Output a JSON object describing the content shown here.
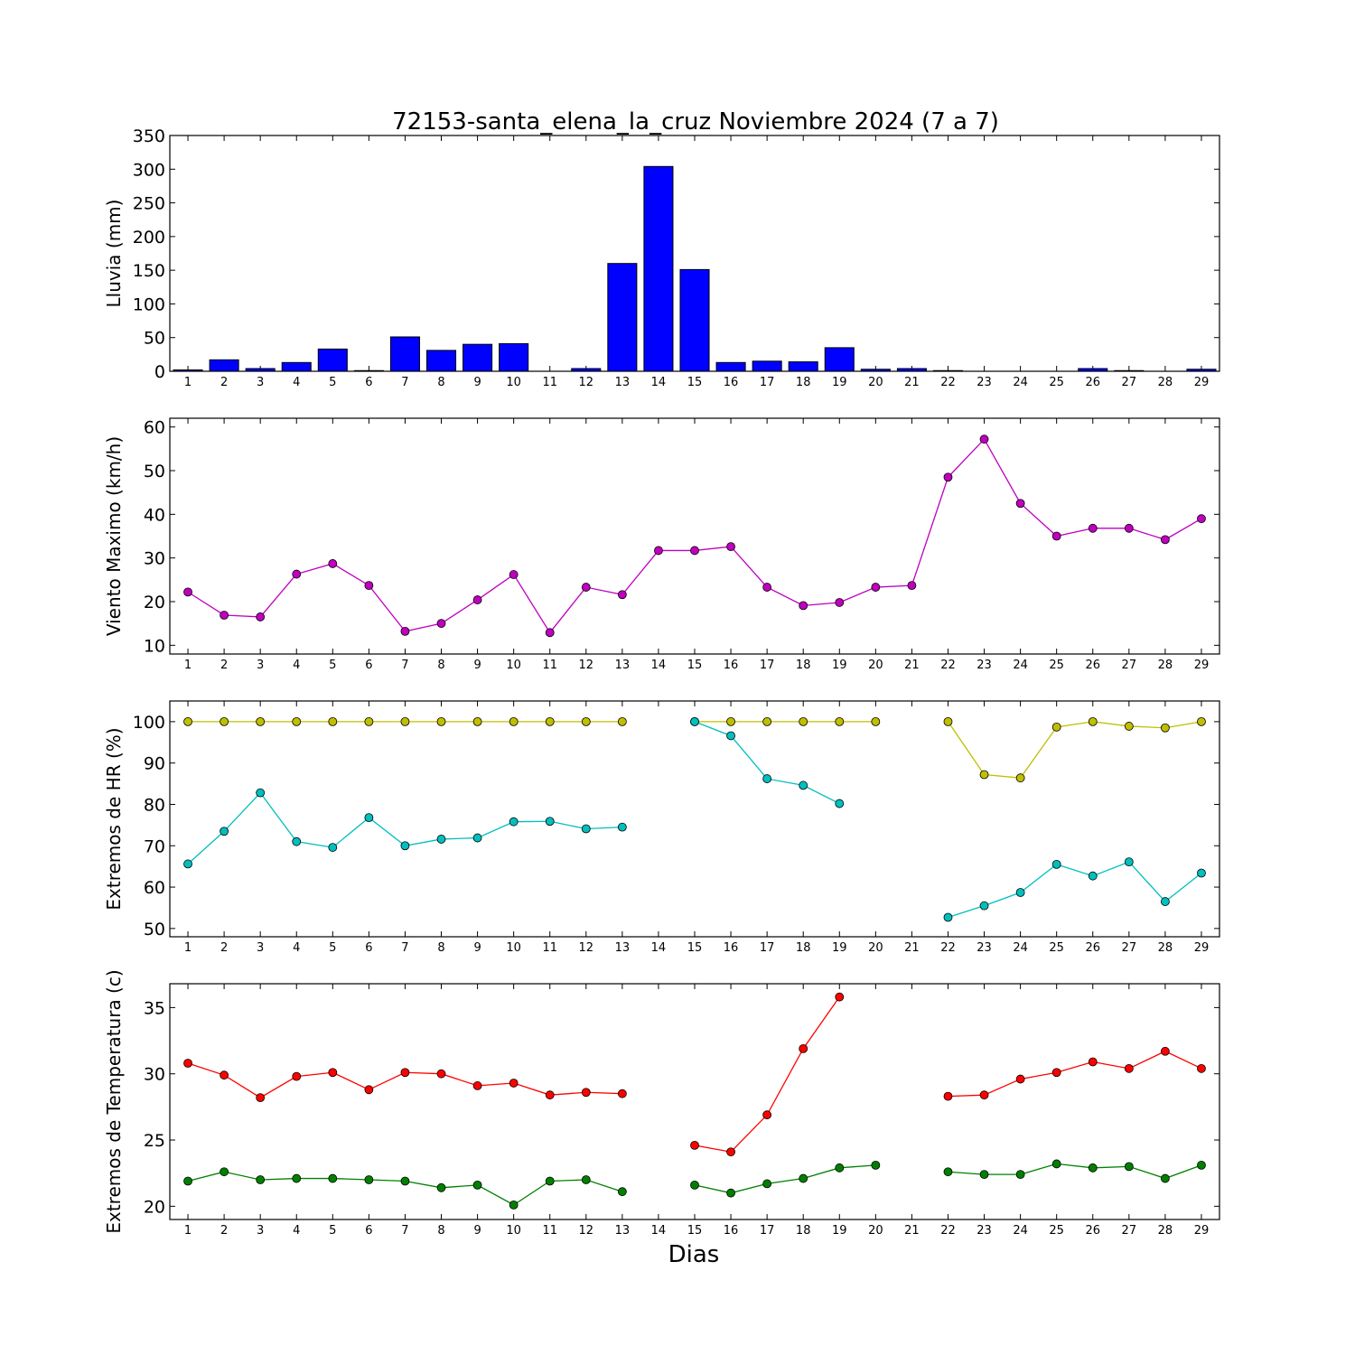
{
  "chart_data": {
    "title": "72153-santa_elena_la_cruz Noviembre 2024  (7 a 7)",
    "xlabel": "Dias",
    "days": [
      1,
      2,
      3,
      4,
      5,
      6,
      7,
      8,
      9,
      10,
      11,
      12,
      13,
      14,
      15,
      16,
      17,
      18,
      19,
      20,
      21,
      22,
      23,
      24,
      25,
      26,
      27,
      28,
      29
    ],
    "panels": [
      {
        "type": "bar",
        "ylabel": "Lluvia (mm)",
        "ylim": [
          0,
          350
        ],
        "yticks": [
          0,
          50,
          100,
          150,
          200,
          250,
          300,
          350
        ],
        "series": [
          {
            "color": "#0000ff",
            "values": [
              2,
              17,
              4,
              13,
              33,
              1,
              51,
              31,
              40,
              41,
              0,
              4,
              160,
              304,
              151,
              13,
              15,
              14,
              35,
              3,
              4,
              1,
              0,
              0,
              0,
              4,
              1,
              0,
              3
            ]
          }
        ]
      },
      {
        "type": "line",
        "ylabel": "Viento Maximo (km/h)",
        "ylim": [
          8,
          62
        ],
        "yticks": [
          10,
          20,
          30,
          40,
          50,
          60
        ],
        "series": [
          {
            "color": "#bf00bf",
            "values": [
              22.2,
              16.9,
              16.5,
              26.3,
              28.7,
              23.7,
              13.2,
              15.0,
              20.4,
              26.2,
              12.9,
              23.3,
              21.6,
              31.7,
              31.7,
              32.6,
              23.3,
              19.1,
              19.8,
              23.3,
              23.7,
              48.5,
              57.2,
              42.5,
              35.0,
              36.8,
              36.8,
              34.2,
              39.0
            ]
          }
        ]
      },
      {
        "type": "line",
        "ylabel": "Extremos de HR (%)",
        "ylim": [
          48,
          105
        ],
        "yticks": [
          50,
          60,
          70,
          80,
          90,
          100
        ],
        "series": [
          {
            "color": "#bfbf00",
            "values": [
              100,
              100,
              100,
              100,
              100,
              100,
              100,
              100,
              100,
              100,
              100,
              100,
              100,
              null,
              100,
              100,
              100,
              100,
              100,
              100,
              null,
              100,
              87.2,
              86.4,
              98.7,
              100,
              98.9,
              98.5,
              100
            ]
          },
          {
            "color": "#00bfbf",
            "values": [
              65.6,
              73.5,
              82.8,
              71.0,
              69.6,
              76.8,
              70.0,
              71.6,
              71.9,
              75.8,
              75.9,
              74.1,
              74.5,
              null,
              100,
              96.6,
              86.2,
              84.6,
              80.2,
              null,
              null,
              52.7,
              55.5,
              58.7,
              65.5,
              62.7,
              66.1,
              56.5,
              63.4
            ]
          }
        ]
      },
      {
        "type": "line",
        "ylabel": "Extremos de Temperatura (c)",
        "ylim": [
          19,
          36.8
        ],
        "yticks": [
          20,
          25,
          30,
          35
        ],
        "series": [
          {
            "color": "#ff0000",
            "values": [
              30.8,
              29.9,
              28.2,
              29.8,
              30.1,
              28.8,
              30.1,
              30.0,
              29.1,
              29.3,
              28.4,
              28.6,
              28.5,
              null,
              24.6,
              24.1,
              26.9,
              31.9,
              35.8,
              null,
              null,
              28.3,
              28.4,
              29.6,
              30.1,
              30.9,
              30.4,
              31.7,
              30.4
            ]
          },
          {
            "color": "#008000",
            "values": [
              21.9,
              22.6,
              22.0,
              22.1,
              22.1,
              22.0,
              21.9,
              21.4,
              21.6,
              20.1,
              21.9,
              22.0,
              21.1,
              null,
              21.6,
              21.0,
              21.7,
              22.1,
              22.9,
              23.1,
              null,
              22.6,
              22.4,
              22.4,
              23.2,
              22.9,
              23.0,
              22.1,
              23.1
            ]
          }
        ]
      }
    ]
  }
}
